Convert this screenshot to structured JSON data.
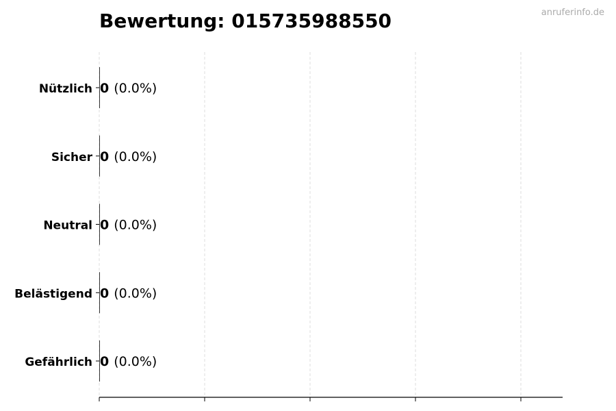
{
  "watermark": "anruferinfo.de",
  "chart_data": {
    "type": "bar",
    "orientation": "horizontal",
    "title": "Bewertung: 015735988550",
    "categories": [
      "Nützlich",
      "Sicher",
      "Neutral",
      "Belästigend",
      "Gefährlich"
    ],
    "values": [
      0,
      0,
      0,
      0,
      0
    ],
    "value_labels": [
      "0",
      "0",
      "0",
      "0",
      "0"
    ],
    "percent_labels": [
      "(0.0%)",
      "(0.0%)",
      "(0.0%)",
      "(0.0%)",
      "(0.0%)"
    ],
    "xlabel": "",
    "ylabel": "",
    "x_ticks_labeled": false,
    "grid": "x, dashed",
    "colors": {
      "bar": "#333333",
      "grid": "#dddddd",
      "watermark": "#aaaaaa",
      "text": "#000000"
    }
  }
}
